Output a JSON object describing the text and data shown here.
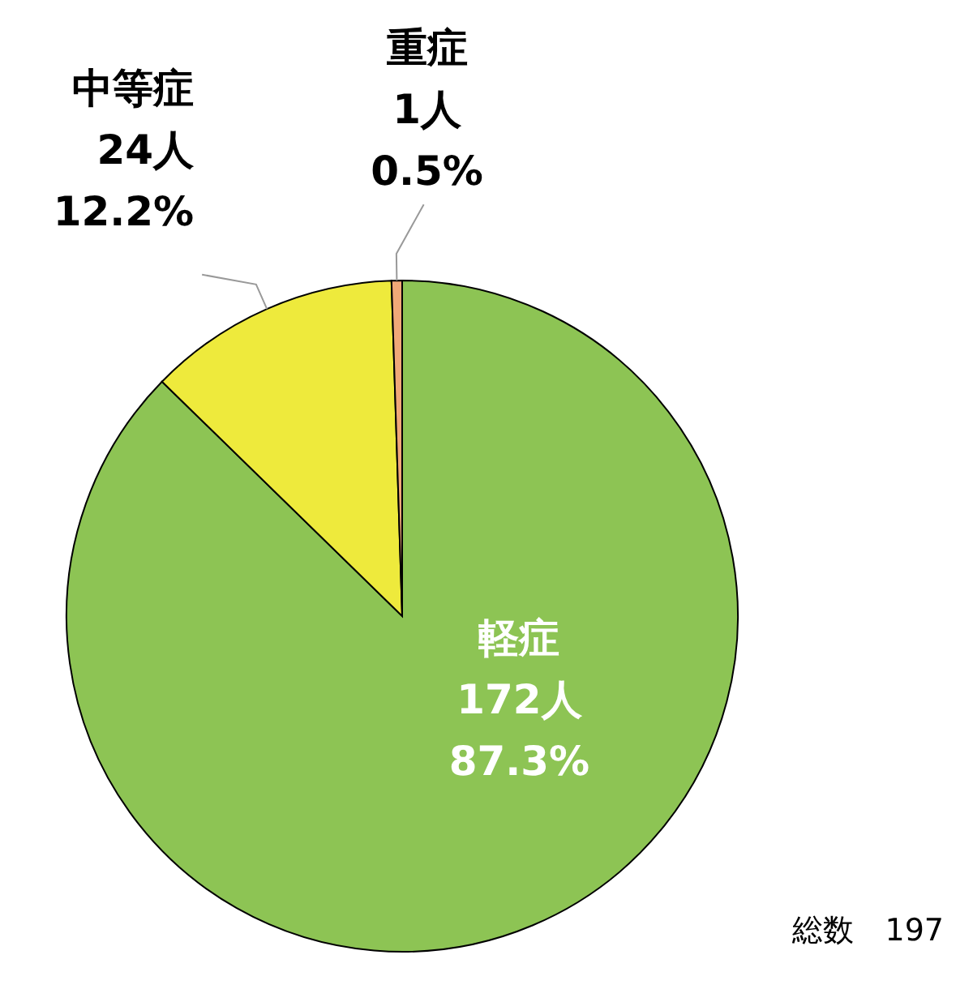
{
  "chart_data": {
    "type": "pie",
    "categories": [
      "軽症",
      "中等症",
      "重症"
    ],
    "values": [
      172,
      24,
      1
    ],
    "colors": [
      "#8dc454",
      "#eeea3c",
      "#f0a878"
    ],
    "value_labels": [
      "172人\n87.3%",
      "24人\n12.2%",
      "1人\n0.5%"
    ],
    "annotations": [
      "総数　197"
    ]
  }
}
